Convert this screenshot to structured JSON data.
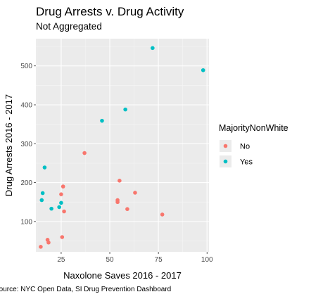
{
  "chart_data": {
    "type": "scatter",
    "title": "Drug Arrests v. Drug Activity",
    "subtitle": "Not Aggregated",
    "xlabel": "Naxolone Saves 2016 - 2017",
    "ylabel": "Drug Arrests 2016 - 2017",
    "caption": "Source: NYC Open Data, SI Drug Prevention Dashboard",
    "xlim": [
      12,
      101
    ],
    "ylim": [
      22,
      570
    ],
    "x_ticks": [
      25,
      50,
      75,
      100
    ],
    "y_ticks": [
      100,
      200,
      300,
      400,
      500
    ],
    "grid": true,
    "legend": {
      "title": "MajorityNonWhite",
      "position": "right",
      "entries": [
        {
          "label": "No",
          "color": "#F8766D"
        },
        {
          "label": "Yes",
          "color": "#00BFC4"
        }
      ]
    },
    "series": [
      {
        "name": "No",
        "color": "#F8766D",
        "points": [
          {
            "x": 14.5,
            "y": 35
          },
          {
            "x": 18,
            "y": 53
          },
          {
            "x": 18.5,
            "y": 46
          },
          {
            "x": 25,
            "y": 170
          },
          {
            "x": 25.5,
            "y": 60
          },
          {
            "x": 26,
            "y": 190
          },
          {
            "x": 26.5,
            "y": 126
          },
          {
            "x": 37,
            "y": 276
          },
          {
            "x": 54,
            "y": 155
          },
          {
            "x": 54,
            "y": 150
          },
          {
            "x": 55,
            "y": 205
          },
          {
            "x": 59,
            "y": 132
          },
          {
            "x": 63,
            "y": 174
          },
          {
            "x": 77,
            "y": 118
          }
        ]
      },
      {
        "name": "Yes",
        "color": "#00BFC4",
        "points": [
          {
            "x": 15,
            "y": 155
          },
          {
            "x": 15.5,
            "y": 173
          },
          {
            "x": 16.5,
            "y": 239
          },
          {
            "x": 20,
            "y": 133
          },
          {
            "x": 24,
            "y": 137
          },
          {
            "x": 25,
            "y": 148
          },
          {
            "x": 46,
            "y": 359
          },
          {
            "x": 58,
            "y": 388
          },
          {
            "x": 72,
            "y": 546
          },
          {
            "x": 98,
            "y": 489
          }
        ]
      }
    ]
  }
}
